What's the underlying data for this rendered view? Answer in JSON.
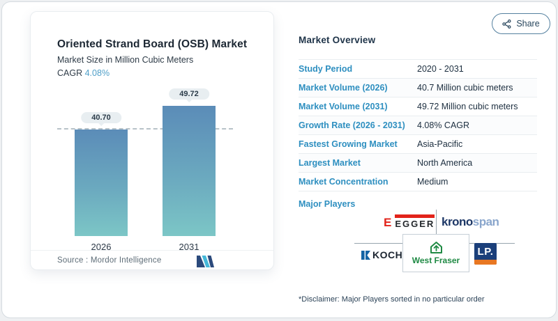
{
  "share": {
    "label": "Share"
  },
  "left_card": {
    "title": "Oriented Strand Board (OSB) Market",
    "subtitle": "Market Size in Million Cubic Meters",
    "cagr_label": "CAGR",
    "cagr_value": "4.08%",
    "source_label": "Source :",
    "source_value": "Mordor Intelligence"
  },
  "chart_data": {
    "type": "bar",
    "categories": [
      "2026",
      "2031"
    ],
    "values": [
      40.7,
      49.72
    ],
    "value_labels": [
      "40.70",
      "49.72"
    ],
    "title": "Oriented Strand Board (OSB) Market",
    "xlabel": "",
    "ylabel": "Market Size in Million Cubic Meters",
    "ylim": [
      0,
      50
    ],
    "grid": false,
    "reference_line": 40.7,
    "bar_gradient": [
      "#5b8cb8",
      "#7cc6c6"
    ],
    "legend_position": "none"
  },
  "overview": {
    "heading": "Market Overview",
    "rows": [
      {
        "label": "Study Period",
        "value": "2020 - 2031"
      },
      {
        "label": "Market Volume (2026)",
        "value": "40.7 Million cubic meters"
      },
      {
        "label": "Market Volume (2031)",
        "value": "49.72 Million cubic meters"
      },
      {
        "label": "Growth Rate (2026 - 2031)",
        "value": "4.08% CAGR"
      },
      {
        "label": "Fastest Growing Market",
        "value": "Asia-Pacific"
      },
      {
        "label": "Largest Market",
        "value": "North America"
      },
      {
        "label": "Market Concentration",
        "value": "Medium"
      }
    ],
    "major_players_label": "Major Players",
    "disclaimer": "*Disclaimer: Major Players sorted in no particular order"
  },
  "players": {
    "egger": {
      "symbol": "E",
      "wordmark": "EGGER"
    },
    "kronospan": {
      "part1": "krono",
      "part2": "span"
    },
    "koch": {
      "wordmark": "KOCH."
    },
    "west_fraser": {
      "wordmark": "West Fraser"
    },
    "lp": {
      "wordmark": "LP."
    }
  },
  "colors": {
    "accent_blue": "#2e8fc0",
    "navy_text": "#1f3042",
    "cagr_blue": "#4f9fc8",
    "bar_top": "#5b8cb8",
    "bar_bottom": "#7cc6c6",
    "dashed_line": "#b7c2c8",
    "pill_bg": "#e8eef1",
    "egger_red": "#e2231a",
    "kronospan_dark": "#1d3766",
    "kronospan_light": "#8aa6cc",
    "koch_blue": "#1464a5",
    "west_fraser_green": "#1f8a44",
    "lp_navy": "#1b3f7a",
    "lp_orange": "#e87722",
    "mordor_dark": "#2b4a7c",
    "mordor_cyan": "#45b8d9"
  }
}
